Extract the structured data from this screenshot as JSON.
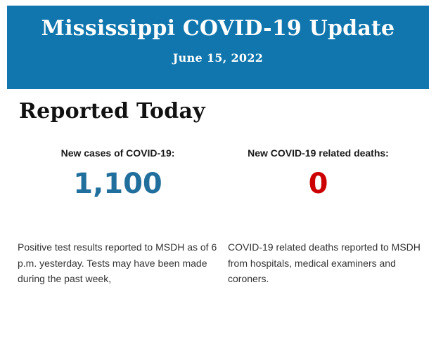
{
  "banner": {
    "title": "Mississippi COVID-19 Update",
    "date": "June 15, 2022",
    "bg_color": "#1076ad",
    "text_color": "#ffffff"
  },
  "section": {
    "heading": "Reported Today"
  },
  "stats": [
    {
      "label": "New cases of COVID-19:",
      "value": "1,100",
      "value_color": "#216f9d",
      "description": "Positive test results reported to MSDH as of 6 p.m. yesterday. Tests may have been made during the past week,"
    },
    {
      "label": "New COVID-19 related deaths:",
      "value": "0",
      "value_color": "#cc0000",
      "description": "COVID-19 related deaths reported to MSDH from hospitals, medical examiners and coroners."
    }
  ],
  "colors": {
    "page_background": "#ffffff",
    "heading_text": "#111111",
    "label_text": "#1a1a1a",
    "body_text": "#333333"
  }
}
